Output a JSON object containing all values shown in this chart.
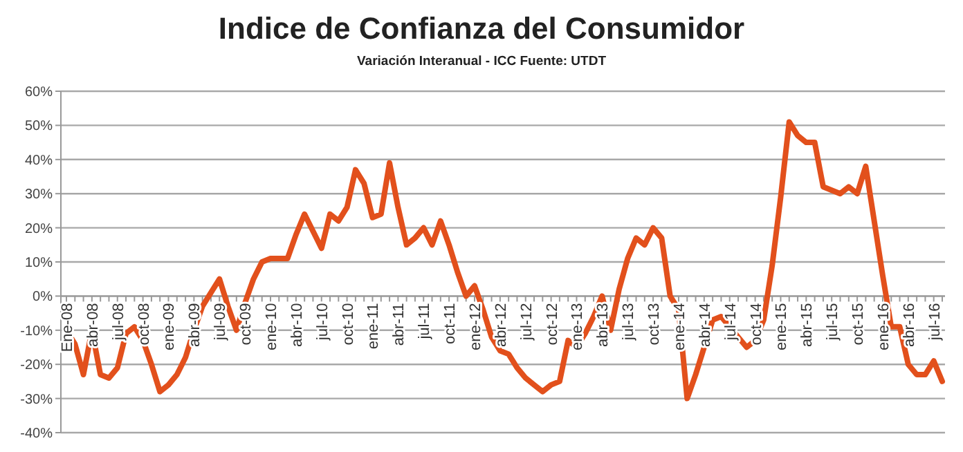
{
  "chart_data": {
    "type": "line",
    "title": "Indice de Confianza del Consumidor",
    "subtitle": "Variación Interanual - ICC Fuente: UTDT",
    "categories": [
      "Ene-08",
      null,
      null,
      "abr-08",
      null,
      null,
      "jul-08",
      null,
      null,
      "oct-08",
      null,
      null,
      "ene-09",
      null,
      null,
      "abr-09",
      null,
      null,
      "jul-09",
      null,
      null,
      "oct-09",
      null,
      null,
      "ene-10",
      null,
      null,
      "abr-10",
      null,
      null,
      "jul-10",
      null,
      null,
      "oct-10",
      null,
      null,
      "ene-11",
      null,
      null,
      "abr-11",
      null,
      null,
      "jul-11",
      null,
      null,
      "oct-11",
      null,
      null,
      "ene-12",
      null,
      null,
      "abr-12",
      null,
      null,
      "jul-12",
      null,
      null,
      "oct-12",
      null,
      null,
      "ene-13",
      null,
      null,
      "abr-13",
      null,
      null,
      "jul-13",
      null,
      null,
      "oct-13",
      null,
      null,
      "ene-14",
      null,
      null,
      "abr-14",
      null,
      null,
      "jul-14",
      null,
      null,
      "oct-14",
      null,
      null,
      "ene-15",
      null,
      null,
      "abr-15",
      null,
      null,
      "jul-15",
      null,
      null,
      "oct-15",
      null,
      null,
      "ene-16",
      null,
      null,
      "abr-16",
      null,
      null,
      "jul-16",
      null
    ],
    "series": [
      {
        "color": "#e2501c",
        "values": [
          -10,
          -14,
          -23,
          -10,
          -23,
          -24,
          -21,
          -11,
          -9,
          -13,
          -20,
          -28,
          -26,
          -23,
          -18,
          -10,
          -3,
          1,
          5,
          -3,
          -10,
          -2,
          5,
          10,
          11,
          11,
          11,
          18,
          24,
          19,
          14,
          24,
          22,
          26,
          37,
          33,
          23,
          24,
          39,
          26,
          15,
          17,
          20,
          15,
          22,
          15,
          7,
          0,
          3,
          -4,
          -12,
          -16,
          -17,
          -21,
          -24,
          -26,
          -28,
          -26,
          -25,
          -13,
          -15,
          -11,
          -6,
          0,
          -10,
          2,
          11,
          17,
          15,
          20,
          17,
          0,
          -4,
          -30,
          -23,
          -15,
          -7,
          -6,
          -9,
          -12,
          -15,
          -13,
          -7,
          9,
          29,
          51,
          47,
          45,
          45,
          32,
          31,
          30,
          32,
          30,
          38,
          22,
          6,
          -9,
          -9,
          -20,
          -23,
          -23,
          -19,
          -25
        ]
      }
    ],
    "ylim": [
      -40,
      60
    ],
    "yticks": [
      {
        "value": -40,
        "label": "-40%"
      },
      {
        "value": -30,
        "label": "-30%"
      },
      {
        "value": -20,
        "label": "-20%"
      },
      {
        "value": -10,
        "label": "-10%"
      },
      {
        "value": 0,
        "label": "0%"
      },
      {
        "value": 10,
        "label": "10%"
      },
      {
        "value": 20,
        "label": "20%"
      },
      {
        "value": 30,
        "label": "30%"
      },
      {
        "value": 40,
        "label": "40%"
      },
      {
        "value": 50,
        "label": "50%"
      },
      {
        "value": 60,
        "label": "60%"
      }
    ],
    "grid": "y",
    "marker": "none",
    "line_style": "solid"
  }
}
